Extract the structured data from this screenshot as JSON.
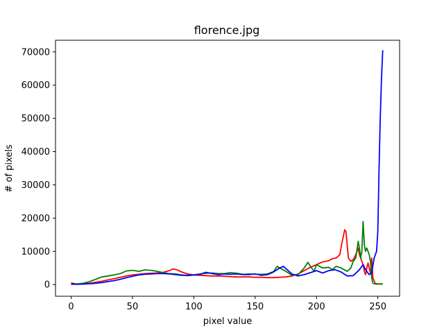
{
  "chart_data": {
    "type": "line",
    "title": "florence.jpg",
    "xlabel": "pixel value",
    "ylabel": "# of pixels",
    "xlim": [
      -12.75,
      267.75
    ],
    "ylim": [
      -3500,
      73500
    ],
    "xticks": [
      0,
      50,
      100,
      150,
      200,
      250
    ],
    "yticks": [
      0,
      10000,
      20000,
      30000,
      40000,
      50000,
      60000,
      70000
    ],
    "series": [
      {
        "color": "#ff0000",
        "x": [
          0,
          5,
          10,
          15,
          20,
          25,
          30,
          35,
          40,
          45,
          50,
          55,
          60,
          65,
          70,
          75,
          80,
          83,
          86,
          90,
          95,
          100,
          105,
          110,
          115,
          120,
          125,
          130,
          135,
          140,
          145,
          150,
          155,
          160,
          165,
          170,
          175,
          180,
          185,
          190,
          195,
          200,
          205,
          210,
          213,
          216,
          219,
          221,
          223,
          224,
          225,
          226,
          228,
          230,
          232,
          234,
          235,
          236,
          237,
          238,
          239,
          240,
          241,
          242,
          243,
          244,
          245,
          246,
          248,
          250,
          254
        ],
        "y": [
          500,
          100,
          200,
          400,
          700,
          1000,
          1400,
          1800,
          2200,
          2600,
          2900,
          3100,
          3300,
          3400,
          3500,
          3700,
          4200,
          4700,
          4500,
          3800,
          3200,
          2900,
          2800,
          2700,
          2600,
          2600,
          2500,
          2400,
          2300,
          2300,
          2300,
          2200,
          2200,
          2100,
          2100,
          2200,
          2300,
          2600,
          3200,
          4200,
          5200,
          6000,
          6800,
          7200,
          7800,
          8000,
          9000,
          13000,
          16500,
          16000,
          12000,
          8000,
          7000,
          7500,
          9000,
          11000,
          9000,
          8000,
          7000,
          6000,
          4000,
          3000,
          5000,
          6500,
          5000,
          3500,
          8000,
          2000,
          300,
          200,
          200
        ]
      },
      {
        "color": "#008000",
        "x": [
          0,
          5,
          10,
          15,
          20,
          25,
          30,
          35,
          40,
          45,
          50,
          55,
          60,
          65,
          70,
          75,
          80,
          85,
          90,
          95,
          100,
          105,
          110,
          115,
          120,
          125,
          130,
          135,
          140,
          145,
          150,
          155,
          160,
          165,
          168,
          170,
          175,
          180,
          185,
          190,
          193,
          195,
          198,
          200,
          205,
          210,
          213,
          216,
          220,
          225,
          228,
          230,
          232,
          234,
          235,
          236,
          237,
          238,
          239,
          240,
          241,
          242,
          243,
          244,
          245,
          246,
          248,
          250,
          254
        ],
        "y": [
          200,
          200,
          400,
          900,
          1600,
          2300,
          2600,
          2900,
          3300,
          4100,
          4300,
          4000,
          4400,
          4300,
          4000,
          3600,
          3300,
          3200,
          2900,
          2700,
          2900,
          3200,
          3400,
          3500,
          3300,
          3300,
          3600,
          3400,
          3100,
          3200,
          3100,
          3100,
          3200,
          3900,
          5500,
          5000,
          4000,
          2800,
          3000,
          5000,
          6700,
          5500,
          4000,
          6000,
          5000,
          5200,
          4500,
          5500,
          5000,
          4000,
          5000,
          7000,
          8000,
          13000,
          11000,
          8000,
          10000,
          19000,
          12000,
          10000,
          11000,
          10000,
          9000,
          7000,
          2000,
          400,
          200,
          200,
          200
        ]
      },
      {
        "color": "#0000ff",
        "x": [
          0,
          5,
          10,
          15,
          20,
          25,
          30,
          35,
          40,
          45,
          50,
          55,
          60,
          65,
          70,
          75,
          80,
          85,
          90,
          95,
          100,
          105,
          110,
          115,
          120,
          125,
          130,
          135,
          140,
          145,
          150,
          155,
          160,
          165,
          170,
          173,
          176,
          180,
          185,
          190,
          195,
          200,
          205,
          210,
          215,
          220,
          225,
          230,
          235,
          238,
          240,
          243,
          245,
          247,
          249,
          250,
          251,
          252,
          253,
          254
        ],
        "y": [
          100,
          100,
          150,
          250,
          400,
          600,
          900,
          1200,
          1600,
          2100,
          2500,
          2900,
          3100,
          3200,
          3300,
          3300,
          3200,
          3000,
          2800,
          2800,
          2900,
          3100,
          3700,
          3300,
          3000,
          3200,
          3100,
          3200,
          3000,
          3000,
          3200,
          2800,
          3000,
          3800,
          5000,
          5500,
          4500,
          3200,
          2600,
          3000,
          3600,
          4200,
          3500,
          4200,
          4500,
          3800,
          2600,
          2700,
          4500,
          6000,
          4500,
          3000,
          3500,
          8000,
          10000,
          16000,
          35000,
          50000,
          62000,
          70500
        ]
      }
    ]
  }
}
